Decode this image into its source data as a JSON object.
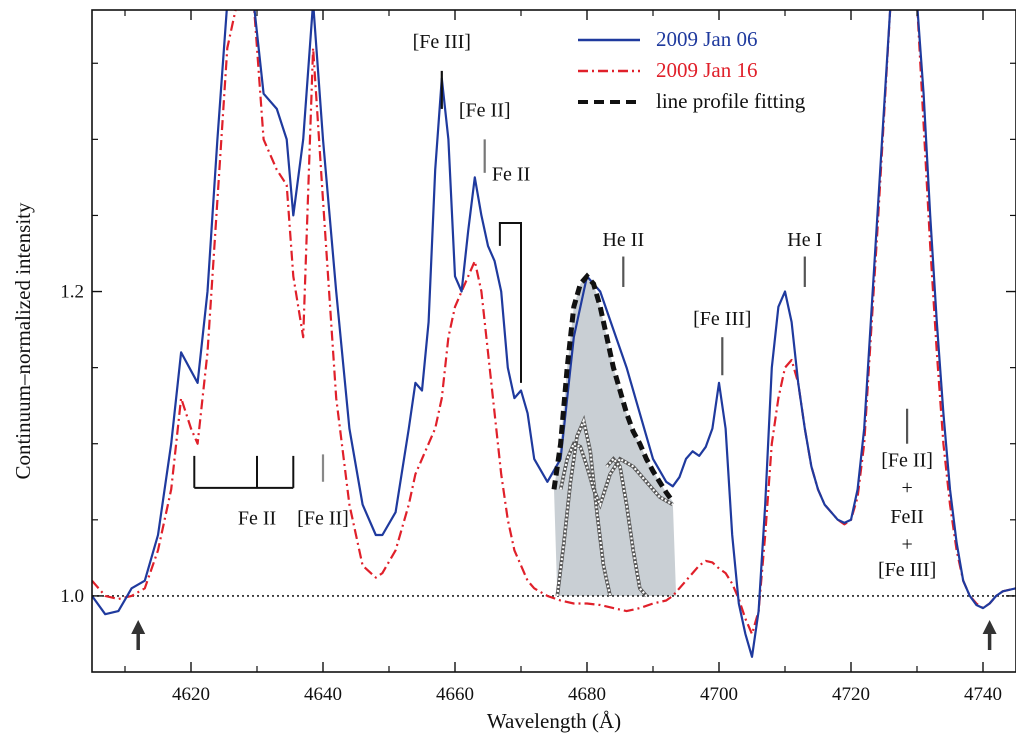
{
  "chart_data": {
    "type": "line",
    "xlabel": "Wavelength (Å)",
    "ylabel": "Continuum–normalized intensity",
    "xlim": [
      4605,
      4745
    ],
    "ylim": [
      0.95,
      1.385
    ],
    "x_ticks": [
      4620,
      4640,
      4660,
      4680,
      4700,
      4720,
      4740
    ],
    "y_ticks": [
      1.0,
      1.2
    ],
    "legend_position": "top-center",
    "legend": [
      {
        "label": "2009 Jan 06",
        "color": "#1f3a9e",
        "style": "solid"
      },
      {
        "label": "2009 Jan 16",
        "color": "#e0202a",
        "style": "dash-dot"
      },
      {
        "label": "line profile fitting",
        "color": "#111111",
        "style": "dashed"
      }
    ],
    "series": [
      {
        "name": "2009 Jan 06",
        "color": "#1f3a9e",
        "x": [
          4605,
          4607,
          4609,
          4611,
          4613,
          4615,
          4617,
          4618.5,
          4620,
          4621,
          4622.5,
          4624,
          4625.5,
          4627,
          4628.5,
          4629.5,
          4631,
          4633,
          4634.5,
          4635.5,
          4637,
          4638.5,
          4640,
          4642,
          4644,
          4646,
          4648,
          4649,
          4651,
          4653,
          4654,
          4655,
          4656,
          4657,
          4658,
          4659,
          4660,
          4661,
          4662,
          4663,
          4664,
          4665,
          4666,
          4667,
          4668,
          4669,
          4670,
          4671,
          4672,
          4674,
          4676,
          4678,
          4680,
          4682,
          4684,
          4686,
          4688,
          4690,
          4692,
          4693,
          4694,
          4695,
          4696,
          4697,
          4698,
          4699,
          4700,
          4701,
          4702,
          4703,
          4704,
          4705,
          4706,
          4707,
          4708,
          4709,
          4710,
          4711,
          4712,
          4713,
          4714,
          4715,
          4716,
          4717,
          4718,
          4719,
          4720,
          4721,
          4722,
          4724,
          4726,
          4728,
          4729,
          4730,
          4731,
          4732,
          4733,
          4734,
          4735,
          4736,
          4737,
          4738,
          4739,
          4740,
          4741,
          4742,
          4743,
          4745
        ],
        "y": [
          1.0,
          0.988,
          0.99,
          1.005,
          1.01,
          1.04,
          1.1,
          1.16,
          1.148,
          1.14,
          1.2,
          1.3,
          1.39,
          1.39,
          1.39,
          1.39,
          1.33,
          1.32,
          1.3,
          1.25,
          1.3,
          1.39,
          1.3,
          1.2,
          1.11,
          1.06,
          1.04,
          1.04,
          1.055,
          1.11,
          1.14,
          1.135,
          1.18,
          1.28,
          1.34,
          1.3,
          1.21,
          1.2,
          1.24,
          1.275,
          1.25,
          1.23,
          1.22,
          1.2,
          1.15,
          1.13,
          1.135,
          1.12,
          1.09,
          1.075,
          1.09,
          1.17,
          1.21,
          1.2,
          1.175,
          1.15,
          1.12,
          1.09,
          1.075,
          1.072,
          1.078,
          1.09,
          1.095,
          1.092,
          1.098,
          1.11,
          1.14,
          1.11,
          1.04,
          0.995,
          0.975,
          0.96,
          0.99,
          1.06,
          1.15,
          1.19,
          1.2,
          1.18,
          1.14,
          1.11,
          1.085,
          1.07,
          1.06,
          1.055,
          1.05,
          1.048,
          1.05,
          1.07,
          1.11,
          1.25,
          1.39,
          1.39,
          1.39,
          1.39,
          1.33,
          1.25,
          1.18,
          1.12,
          1.07,
          1.035,
          1.01,
          1.0,
          0.994,
          0.992,
          0.995,
          1.0,
          1.003,
          1.005
        ]
      },
      {
        "name": "2009 Jan 16",
        "color": "#e0202a",
        "x": [
          4605,
          4607,
          4609,
          4611,
          4613,
          4615,
          4617,
          4618.5,
          4620,
          4621,
          4622.5,
          4624,
          4625.5,
          4627,
          4628.5,
          4629.5,
          4631,
          4633,
          4634.5,
          4635.5,
          4637,
          4638.5,
          4640,
          4642,
          4644,
          4646,
          4648,
          4649,
          4651,
          4653,
          4654,
          4655,
          4656,
          4657,
          4658,
          4659,
          4660,
          4661,
          4662,
          4663,
          4664,
          4665,
          4666,
          4667,
          4668,
          4669,
          4670,
          4671,
          4672,
          4674,
          4676,
          4678,
          4680,
          4682,
          4684,
          4686,
          4688,
          4690,
          4692,
          4693,
          4694,
          4695,
          4696,
          4697,
          4698,
          4699,
          4700,
          4701,
          4702,
          4703,
          4704,
          4705,
          4706,
          4707,
          4708,
          4709,
          4710,
          4711,
          4712,
          4713,
          4714,
          4715,
          4716,
          4717,
          4718,
          4719,
          4720,
          4721,
          4722,
          4724,
          4726,
          4728,
          4729,
          4730,
          4731,
          4732,
          4733,
          4734,
          4735,
          4736,
          4737,
          4738,
          4739,
          4740,
          4741,
          4742,
          4743,
          4745
        ],
        "y": [
          1.01,
          1.0,
          0.998,
          1.0,
          1.005,
          1.03,
          1.07,
          1.13,
          1.11,
          1.1,
          1.16,
          1.26,
          1.36,
          1.39,
          1.39,
          1.39,
          1.3,
          1.28,
          1.27,
          1.21,
          1.17,
          1.36,
          1.26,
          1.13,
          1.06,
          1.02,
          1.012,
          1.015,
          1.03,
          1.06,
          1.08,
          1.09,
          1.1,
          1.11,
          1.13,
          1.17,
          1.19,
          1.2,
          1.21,
          1.22,
          1.2,
          1.16,
          1.12,
          1.08,
          1.05,
          1.03,
          1.02,
          1.01,
          1.005,
          1.0,
          0.997,
          0.995,
          0.995,
          0.994,
          0.992,
          0.99,
          0.992,
          0.995,
          0.997,
          1.0,
          1.005,
          1.01,
          1.015,
          1.02,
          1.023,
          1.022,
          1.018,
          1.015,
          1.008,
          0.998,
          0.985,
          0.975,
          0.99,
          1.04,
          1.1,
          1.13,
          1.15,
          1.155,
          1.14,
          1.11,
          1.085,
          1.07,
          1.06,
          1.055,
          1.05,
          1.047,
          1.05,
          1.065,
          1.1,
          1.24,
          1.39,
          1.39,
          1.39,
          1.39,
          1.31,
          1.23,
          1.16,
          1.1,
          1.06,
          1.03,
          1.01,
          1.0,
          0.995,
          0.992,
          0.995,
          1.0,
          1.003,
          1.005
        ]
      },
      {
        "name": "line profile fitting",
        "color": "#111111",
        "x": [
          4675,
          4676,
          4677,
          4678,
          4679,
          4680,
          4681,
          4682,
          4683,
          4684,
          4685,
          4686,
          4687,
          4688,
          4689,
          4690,
          4691,
          4692,
          4693
        ],
        "y": [
          1.07,
          1.1,
          1.15,
          1.19,
          1.205,
          1.21,
          1.205,
          1.19,
          1.17,
          1.15,
          1.135,
          1.12,
          1.108,
          1.1,
          1.09,
          1.082,
          1.075,
          1.068,
          1.062
        ]
      }
    ],
    "fit_region": [
      4675.5,
      4693.5
    ],
    "fit_components": [
      {
        "x": [
          4675.5,
          4676.5,
          4677.5,
          4678.5,
          4679.5,
          4680.5,
          4681.5,
          4682.5,
          4683.5
        ],
        "y": [
          1.0,
          1.035,
          1.075,
          1.105,
          1.115,
          1.095,
          1.055,
          1.02,
          1.0
        ]
      },
      {
        "x": [
          4676,
          4677,
          4678,
          4679,
          4680,
          4681,
          4682,
          4683.5,
          4685,
          4687,
          4689,
          4691,
          4693
        ],
        "y": [
          1.07,
          1.09,
          1.1,
          1.098,
          1.085,
          1.07,
          1.06,
          1.08,
          1.09,
          1.085,
          1.075,
          1.065,
          1.06
        ]
      },
      {
        "x": [
          4683,
          4684,
          4685,
          4686,
          4687,
          4688,
          4689
        ],
        "y": [
          1.085,
          1.09,
          1.085,
          1.06,
          1.03,
          1.005,
          1.0
        ]
      }
    ],
    "continuum_level": 1.0,
    "annotations": [
      {
        "text": "[Fe III]",
        "x": 4658,
        "y": 1.36,
        "tick_y": [
          1.32,
          1.345
        ],
        "tick_color": "#111"
      },
      {
        "text": "[Fe II]",
        "x": 4664.5,
        "y": 1.315,
        "tick_y": [
          1.278,
          1.3
        ],
        "tick_color": "#777"
      },
      {
        "text": "Fe II",
        "x": 4668.5,
        "y": 1.273,
        "tick_color": "#111"
      },
      {
        "text": "He II",
        "x": 4685.5,
        "y": 1.23,
        "tick_y": [
          1.203,
          1.223
        ],
        "tick_color": "#555"
      },
      {
        "text": "He I",
        "x": 4713,
        "y": 1.23,
        "tick_y": [
          1.203,
          1.223
        ],
        "tick_color": "#555"
      },
      {
        "text": "[Fe III]",
        "x": 4700.5,
        "y": 1.178,
        "tick_y": [
          1.145,
          1.17
        ],
        "tick_color": "#555"
      },
      {
        "text": "Fe II",
        "x": 4630,
        "y": 1.047,
        "tick_color": "#111"
      },
      {
        "text": "[Fe II]",
        "x": 4640,
        "y": 1.047,
        "tick_y": [
          1.075,
          1.093
        ],
        "tick_color": "#888"
      },
      {
        "text": "[Fe II]",
        "x": 4728.5,
        "y": 1.085,
        "tick_y": [
          1.1,
          1.123
        ],
        "tick_color": "#555"
      },
      {
        "text": "+",
        "x": 4728.5,
        "y": 1.067
      },
      {
        "text": "FeII",
        "x": 4728.5,
        "y": 1.048
      },
      {
        "text": "+",
        "x": 4728.5,
        "y": 1.03
      },
      {
        "text": "[Fe III]",
        "x": 4728.5,
        "y": 1.013
      }
    ],
    "arrows": [
      4612,
      4741
    ]
  }
}
